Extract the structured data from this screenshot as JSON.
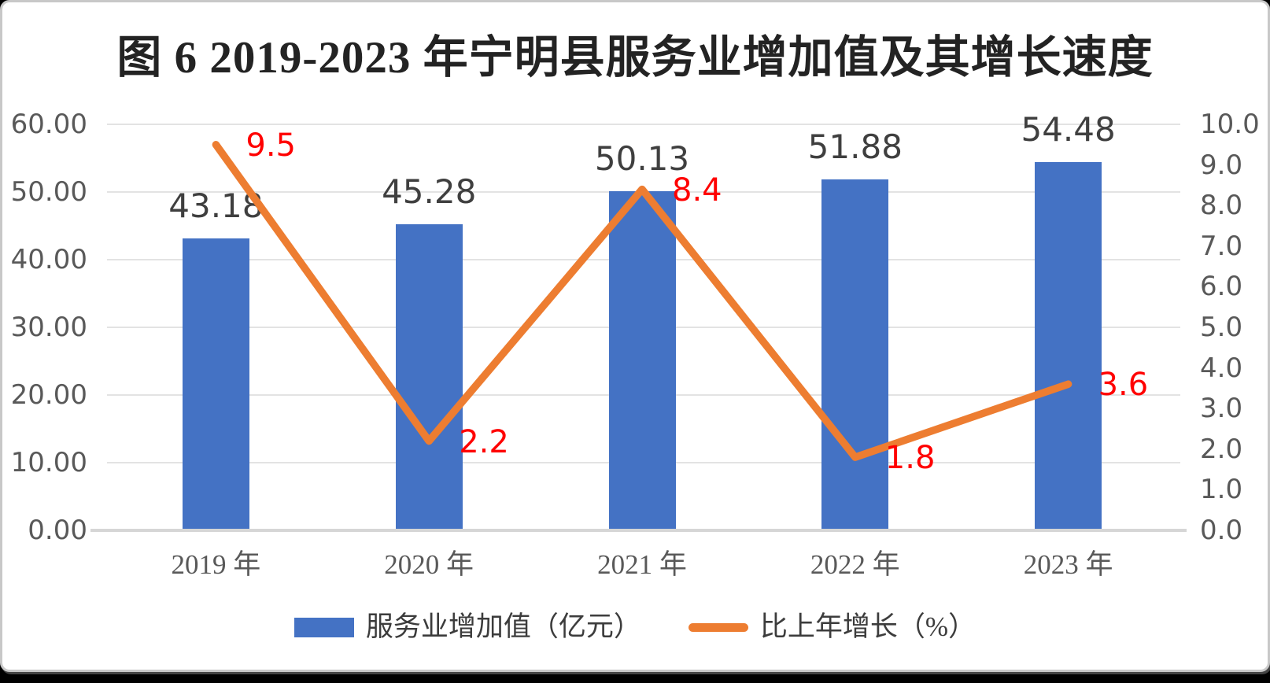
{
  "title": "图 6 2019-2023 年宁明县服务业增加值及其增长速度",
  "colors": {
    "bar": "#4472C4",
    "line": "#ED7D31",
    "bar_label": "#3F3F3F",
    "line_label": "#FF0000",
    "axis_label": "#595959",
    "gridline": "#E3E3E3",
    "card_border": "#C8C8C8",
    "background": "#FFFFFF"
  },
  "chart_data": {
    "type": "combo-bar-line",
    "categories": [
      "2019 年",
      "2020 年",
      "2021 年",
      "2022 年",
      "2023 年"
    ],
    "series": [
      {
        "name": "服务业增加值（亿元）",
        "type": "bar",
        "axis": "left",
        "color": "#4472C4",
        "values": [
          43.18,
          45.28,
          50.13,
          51.88,
          54.48
        ],
        "labels": [
          "43.18",
          "45.28",
          "50.13",
          "51.88",
          "54.48"
        ]
      },
      {
        "name": "比上年增长（%）",
        "type": "line",
        "axis": "right",
        "color": "#ED7D31",
        "label_color": "#FF0000",
        "values": [
          9.5,
          2.2,
          8.4,
          1.8,
          3.6
        ],
        "labels": [
          "9.5",
          "2.2",
          "8.4",
          "1.8",
          "3.6"
        ]
      }
    ],
    "left_axis": {
      "min": 0,
      "max": 60,
      "step": 10,
      "ticks": [
        "60.00",
        "50.00",
        "40.00",
        "30.00",
        "20.00",
        "10.00",
        "0.00"
      ]
    },
    "right_axis": {
      "min": 0,
      "max": 10,
      "step": 1,
      "ticks": [
        "10.0",
        "9.0",
        "8.0",
        "7.0",
        "6.0",
        "5.0",
        "4.0",
        "3.0",
        "2.0",
        "1.0",
        "0.0"
      ]
    },
    "gridlines": true,
    "legend_position": "bottom"
  },
  "legend": {
    "items": [
      {
        "label": "服务业增加值（亿元）",
        "marker": "bar-swatch"
      },
      {
        "label": "比上年增长（%）",
        "marker": "line-swatch"
      }
    ]
  }
}
